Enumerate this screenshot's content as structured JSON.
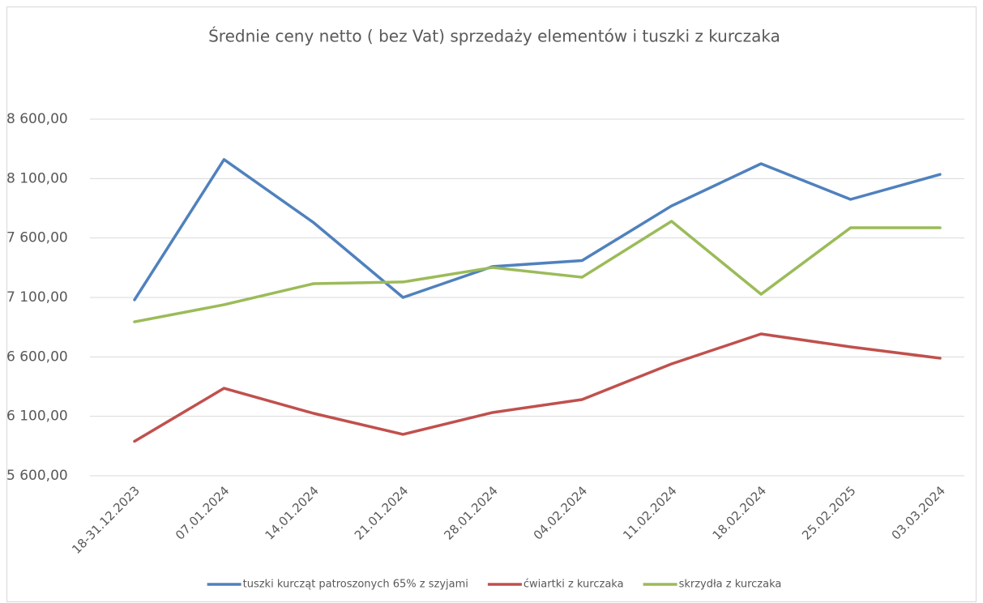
{
  "chart_data": {
    "type": "line",
    "title": "Średnie ceny netto ( bez Vat) sprzedaży elementów i tuszki z kurczaka",
    "categories": [
      "18-31.12.2023",
      "07.01.2024",
      "14.01.2024",
      "21.01.2024",
      "28.01.2024",
      "04.02.2024",
      "11.02.2024",
      "18.02.2024",
      "25.02.2025",
      "03.03.2024"
    ],
    "series": [
      {
        "name": "tuszki kurcząt patroszonych 65% z szyjami",
        "color": "#4f81bd",
        "values": [
          7080,
          8260,
          7730,
          7100,
          7360,
          7410,
          7870,
          8225,
          7925,
          8135
        ]
      },
      {
        "name": "ćwiartki z kurczaka",
        "color": "#c0504d",
        "values": [
          5890,
          6336,
          6125,
          5948,
          6132,
          6241,
          6541,
          6793,
          6684,
          6589
        ]
      },
      {
        "name": "skrzydła z kurczaka",
        "color": "#9bbb59",
        "values": [
          6895,
          7039,
          7216,
          7230,
          7352,
          7270,
          7741,
          7127,
          7686,
          7686
        ]
      }
    ],
    "ylim": [
      5600,
      8600
    ],
    "yticks": [
      {
        "value": 5600,
        "label": "5 600,00"
      },
      {
        "value": 6100,
        "label": "6 100,00"
      },
      {
        "value": 6600,
        "label": "6 600,00"
      },
      {
        "value": 7100,
        "label": "7 100,00"
      },
      {
        "value": 7600,
        "label": "7 600,00"
      },
      {
        "value": 8100,
        "label": "8 100,00"
      },
      {
        "value": 8600,
        "label": "8 600,00"
      }
    ],
    "grid": true,
    "legend": "bottom"
  }
}
